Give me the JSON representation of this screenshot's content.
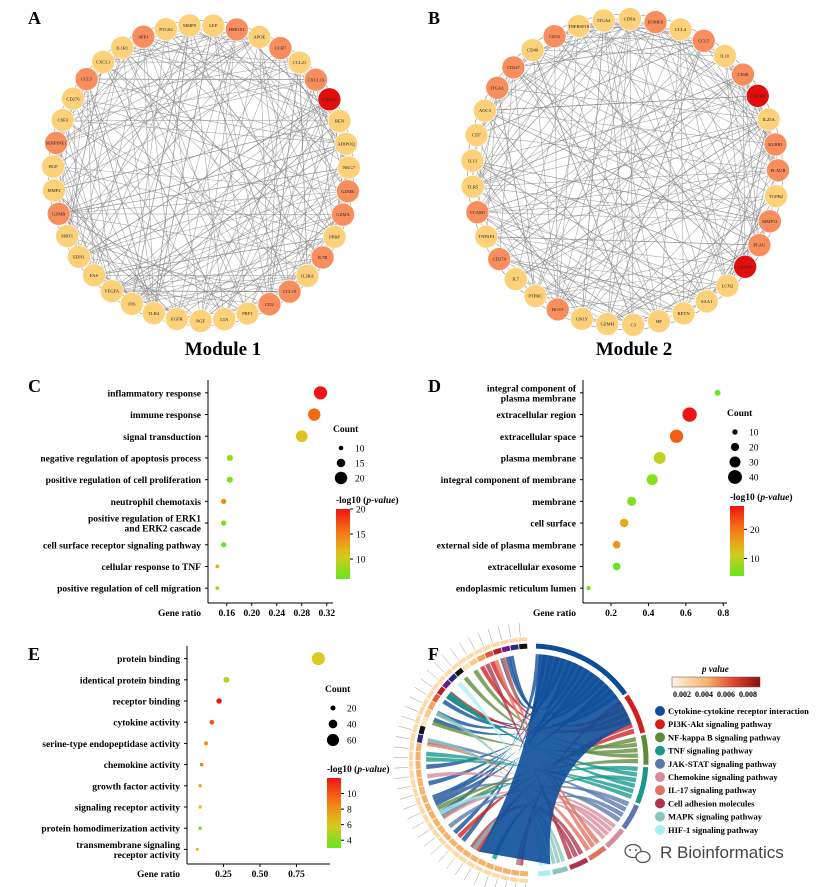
{
  "panel_letters": {
    "A": "A",
    "B": "B",
    "C": "C",
    "D": "D",
    "E": "E",
    "F": "F"
  },
  "modules": {
    "module1": "Module 1",
    "module2": "Module 2"
  },
  "network_colors": {
    "low": "#fdd07a",
    "mid": "#f88e5e",
    "high": "#e10e0e",
    "edge": "#8c8c8c"
  },
  "network_A": {
    "nodes": [
      "CXCL8",
      "REN",
      "ADIPOQ",
      "NKG7",
      "GZMK",
      "GZMA",
      "PPBP",
      "IL7R",
      "IL3RA",
      "CCL19",
      "CD2",
      "PRF1",
      "LTA",
      "NGF",
      "EGFR",
      "TLR4",
      "INS",
      "VEGFA",
      "FAS",
      "EDN1",
      "SIRT1",
      "GZMB",
      "MMP2",
      "HGF",
      "SERPINE1",
      "CSF3",
      "CD276",
      "CCL5",
      "CXCL1",
      "IL1R1",
      "SPP1",
      "PTGS2",
      "MMP9",
      "LEP",
      "HMOX1",
      "APOE",
      "CCR7",
      "CCL21",
      "CXCL13"
    ],
    "levels": [
      2,
      0,
      0,
      0,
      1,
      1,
      0,
      1,
      0,
      1,
      1,
      0,
      0,
      0,
      0,
      0,
      0,
      0,
      0,
      0,
      0,
      1,
      0,
      0,
      1,
      0,
      0,
      1,
      0,
      0,
      1,
      0,
      0,
      0,
      1,
      0,
      1,
      0,
      1
    ]
  },
  "network_B": {
    "nodes": [
      "CXCR4",
      "IL25A",
      "KLRB1",
      "PLAUR",
      "TGFB2",
      "MMP13",
      "PLAU",
      "CXCR3",
      "LCN2",
      "SAA1",
      "RETN",
      "HP",
      "C3",
      "GZMH",
      "GNLY",
      "HCST",
      "PTPRC",
      "IL7",
      "CD274",
      "TNFSF4",
      "VCAM1",
      "TLR5",
      "IL13",
      "CD7",
      "AOC3",
      "ITGAL",
      "CD247",
      "CD40",
      "CD52",
      "TNFRSF18",
      "ITGA4",
      "CD8A",
      "EOMES",
      "CCL4",
      "CCL5",
      "IL10",
      "CD48"
    ],
    "levels": [
      2,
      0,
      1,
      1,
      0,
      1,
      1,
      2,
      0,
      0,
      0,
      0,
      0,
      0,
      0,
      1,
      0,
      0,
      1,
      0,
      1,
      0,
      0,
      0,
      0,
      1,
      1,
      0,
      1,
      0,
      0,
      0,
      1,
      0,
      1,
      0,
      1
    ]
  },
  "chart_data": [
    {
      "type": "scatter",
      "panel": "C",
      "categories": [
        "inflammatory response",
        "immune response",
        "signal transduction",
        "negative regulation of apoptosis process",
        "positive regulation of cell proliferation",
        "neutrophil chemotaxis",
        "positive regulation of ERK1 and ERK2 cascade",
        "cell surface receptor signaling pathway",
        "cellular response to TNF",
        "positive regulation of cell migration"
      ],
      "x": [
        0.31,
        0.3,
        0.28,
        0.165,
        0.165,
        0.155,
        0.155,
        0.155,
        0.145,
        0.145
      ],
      "count": [
        21,
        20,
        19,
        12,
        12,
        11,
        11,
        11,
        9,
        9
      ],
      "neg_log10_p": [
        20,
        16,
        11,
        8,
        7,
        14,
        7,
        6,
        12,
        8
      ],
      "xlabel": "Gene ratio",
      "xticks": [
        "0.16",
        "0.20",
        "0.24",
        "0.28",
        "0.32"
      ],
      "xlim": [
        0.13,
        0.33
      ],
      "size_legend": {
        "title": "Count",
        "values": [
          10,
          15,
          20
        ]
      },
      "color_legend": {
        "title": "-log10 (p-value)",
        "ticks": [
          10,
          15,
          20
        ],
        "range": [
          6,
          20
        ]
      }
    },
    {
      "type": "scatter",
      "panel": "D",
      "categories": [
        "integral component of plasma membrane",
        "extracellular region",
        "extracellular space",
        "plasma membrane",
        "integral component of membrane",
        "membrane",
        "cell surface",
        "external side of plasma membrane",
        "extracellular exosome",
        "endoplasmic reticulum lumen"
      ],
      "x": [
        0.77,
        0.62,
        0.55,
        0.46,
        0.42,
        0.31,
        0.27,
        0.23,
        0.23,
        0.08
      ],
      "count": [
        12,
        42,
        38,
        33,
        30,
        23,
        21,
        18,
        18,
        6
      ],
      "neg_log10_p": [
        4,
        28,
        22,
        10,
        6,
        6,
        15,
        17,
        4,
        5
      ],
      "xlabel": "Gene ratio",
      "xticks": [
        "0.2",
        "0.4",
        "0.6",
        "0.8"
      ],
      "xlim": [
        0.05,
        0.82
      ],
      "size_legend": {
        "title": "Count",
        "values": [
          10,
          20,
          30,
          40
        ]
      },
      "color_legend": {
        "title": "-log10 (p-value)",
        "ticks": [
          10,
          20
        ],
        "range": [
          4,
          28
        ]
      }
    },
    {
      "type": "scatter",
      "panel": "E",
      "categories": [
        "protein binding",
        "identical protein binding",
        "receptor binding",
        "cytokine activity",
        "serine-type endopeptidase activity",
        "chemokine activity",
        "growth factor activity",
        "signaling receptor activity",
        "protein homodimerization activity",
        "transmembrane signaling receptor activity"
      ],
      "x": [
        0.9,
        0.27,
        0.22,
        0.17,
        0.13,
        0.1,
        0.09,
        0.09,
        0.09,
        0.07
      ],
      "count": [
        65,
        25,
        22,
        18,
        15,
        11,
        11,
        11,
        11,
        8
      ],
      "neg_log10_p": [
        6,
        5,
        12,
        10,
        8,
        9,
        7,
        6,
        3,
        7
      ],
      "xlabel": "Gene ratio",
      "xticks": [
        "0.25",
        "0.50",
        "0.75"
      ],
      "xlim": [
        0.0,
        0.98
      ],
      "size_legend": {
        "title": "Count",
        "values": [
          20,
          40,
          60
        ]
      },
      "color_legend": {
        "title": "-log10 (p-value)",
        "ticks": [
          4,
          6,
          8,
          10
        ],
        "range": [
          3,
          12
        ]
      }
    }
  ],
  "chord": {
    "p_title": "p value",
    "p_ticks": [
      "0.002",
      "0.004",
      "0.006",
      "0.008"
    ],
    "pathways": [
      {
        "label": "Cytokine-cytokine receptor interaction",
        "color": "#0d4e9a"
      },
      {
        "label": "PI3K-Akt signaling pathway",
        "color": "#d31f1f"
      },
      {
        "label": "NF-kappa B signaling pathway",
        "color": "#5f8c3a"
      },
      {
        "label": "TNF signaling pathway",
        "color": "#14998b"
      },
      {
        "label": "JAK-STAT signaling pathway",
        "color": "#5a79aa"
      },
      {
        "label": "Chemokine signaling pathway",
        "color": "#d68c9d"
      },
      {
        "label": "IL-17 signaling pathway",
        "color": "#e2715f"
      },
      {
        "label": "Cell adhesion molecules",
        "color": "#b0344c"
      },
      {
        "label": "MAPK signaling pathway",
        "color": "#8cc4bd"
      },
      {
        "label": "HIF-1 signaling pathway",
        "color": "#a6eef2"
      }
    ],
    "watermark": "R Bioinformatics"
  }
}
